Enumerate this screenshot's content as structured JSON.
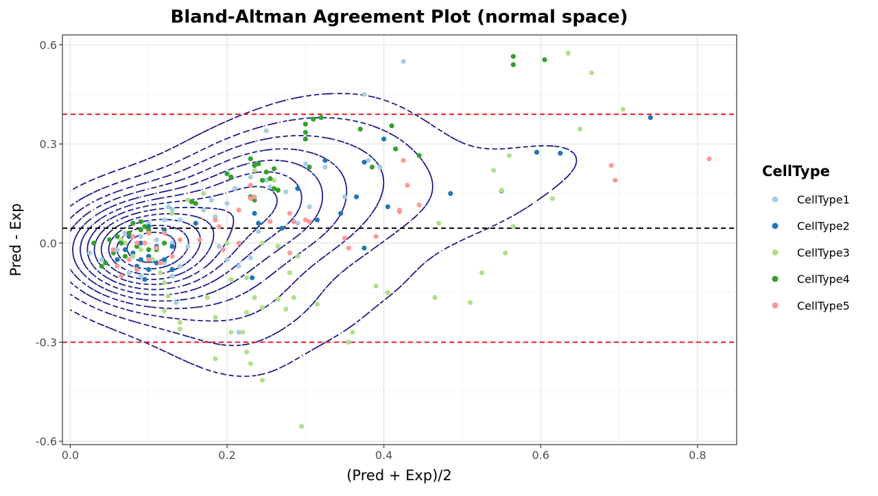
{
  "chart_data": {
    "type": "scatter",
    "title": "Bland-Altman Agreement Plot (normal space)",
    "xlabel": "(Pred + Exp)/2",
    "ylabel": "Pred - Exp",
    "xlim": [
      -0.01,
      0.85
    ],
    "ylim": [
      -0.61,
      0.63
    ],
    "x_ticks": [
      0.0,
      0.2,
      0.4,
      0.6,
      0.8
    ],
    "x_tick_labels": [
      "0.0",
      "0.2",
      "0.4",
      "0.6",
      "0.8"
    ],
    "y_ticks": [
      -0.6,
      -0.3,
      0.0,
      0.3,
      0.6
    ],
    "y_tick_labels": [
      "-0.6",
      "-0.3",
      "0.0",
      "0.3",
      "0.6"
    ],
    "grid": true,
    "legend_title": "CellType",
    "legend_position": "right",
    "reference_lines": [
      {
        "y": 0.045,
        "color": "#000000",
        "style": "dashed"
      },
      {
        "y": 0.39,
        "color": "#e41a1c",
        "style": "dashed"
      },
      {
        "y": -0.3,
        "color": "#e41a1c",
        "style": "dashed"
      }
    ],
    "contour_color": "#1a1a8c",
    "series": [
      {
        "name": "CellType1",
        "color": "#a6cee3",
        "points": [
          [
            0.425,
            0.55
          ],
          [
            0.375,
            0.45
          ],
          [
            0.25,
            0.34
          ],
          [
            0.38,
            0.25
          ],
          [
            0.3,
            0.24
          ],
          [
            0.325,
            0.23
          ],
          [
            0.395,
            0.23
          ],
          [
            0.23,
            0.2
          ],
          [
            0.25,
            0.19
          ],
          [
            0.255,
            0.17
          ],
          [
            0.21,
            0.165
          ],
          [
            0.275,
            0.155
          ],
          [
            0.305,
            0.11
          ],
          [
            0.2,
            0.12
          ],
          [
            0.185,
            0.08
          ],
          [
            0.35,
            0.14
          ],
          [
            0.125,
            0.11
          ],
          [
            0.13,
            0.1
          ],
          [
            0.17,
            0.1
          ],
          [
            0.12,
            0.07
          ],
          [
            0.18,
            0.13
          ],
          [
            0.1,
            0.06
          ],
          [
            0.14,
            0.07
          ],
          [
            0.07,
            0.03
          ],
          [
            0.09,
            0.02
          ],
          [
            0.11,
            0.01
          ],
          [
            0.13,
            0.0
          ],
          [
            0.15,
            -0.01
          ],
          [
            0.06,
            -0.02
          ],
          [
            0.08,
            -0.03
          ],
          [
            0.1,
            -0.04
          ],
          [
            0.025,
            -0.03
          ],
          [
            0.04,
            -0.05
          ],
          [
            0.12,
            -0.06
          ],
          [
            0.14,
            -0.07
          ],
          [
            0.2,
            -0.05
          ],
          [
            0.215,
            -0.07
          ],
          [
            0.23,
            -0.045
          ],
          [
            0.19,
            -0.01
          ],
          [
            0.24,
            0.035
          ],
          [
            0.29,
            0.06
          ],
          [
            0.075,
            -0.09
          ],
          [
            0.09,
            -0.1
          ],
          [
            0.13,
            -0.1
          ],
          [
            0.135,
            -0.18
          ],
          [
            0.215,
            -0.27
          ]
        ]
      },
      {
        "name": "CellType2",
        "color": "#1f78b4",
        "points": [
          [
            0.74,
            0.38
          ],
          [
            0.595,
            0.275
          ],
          [
            0.625,
            0.272
          ],
          [
            0.4,
            0.315
          ],
          [
            0.325,
            0.25
          ],
          [
            0.375,
            0.245
          ],
          [
            0.485,
            0.15
          ],
          [
            0.405,
            0.11
          ],
          [
            0.55,
            0.158
          ],
          [
            0.365,
            0.14
          ],
          [
            0.29,
            0.165
          ],
          [
            0.345,
            0.09
          ],
          [
            0.235,
            0.09
          ],
          [
            0.315,
            0.07
          ],
          [
            0.27,
            0.045
          ],
          [
            0.24,
            0.06
          ],
          [
            0.375,
            -0.015
          ],
          [
            0.16,
            0.06
          ],
          [
            0.1,
            0.05
          ],
          [
            0.12,
            0.04
          ],
          [
            0.09,
            0.0
          ],
          [
            0.11,
            -0.01
          ],
          [
            0.13,
            -0.01
          ],
          [
            0.07,
            -0.02
          ],
          [
            0.08,
            -0.03
          ],
          [
            0.09,
            -0.05
          ],
          [
            0.1,
            -0.04
          ],
          [
            0.11,
            -0.06
          ],
          [
            0.06,
            -0.05
          ],
          [
            0.085,
            -0.07
          ],
          [
            0.1,
            -0.08
          ],
          [
            0.12,
            -0.05
          ],
          [
            0.095,
            -0.11
          ],
          [
            0.13,
            -0.08
          ],
          [
            0.075,
            0.02
          ],
          [
            0.232,
            -0.105
          ]
        ]
      },
      {
        "name": "CellType3",
        "color": "#b2df8a",
        "points": [
          [
            0.635,
            0.575
          ],
          [
            0.665,
            0.515
          ],
          [
            0.705,
            0.405
          ],
          [
            0.65,
            0.345
          ],
          [
            0.54,
            0.22
          ],
          [
            0.56,
            0.265
          ],
          [
            0.615,
            0.135
          ],
          [
            0.55,
            0.16
          ],
          [
            0.47,
            0.06
          ],
          [
            0.565,
            0.05
          ],
          [
            0.555,
            -0.03
          ],
          [
            0.525,
            -0.09
          ],
          [
            0.51,
            -0.18
          ],
          [
            0.465,
            -0.165
          ],
          [
            0.405,
            -0.15
          ],
          [
            0.39,
            -0.13
          ],
          [
            0.355,
            -0.3
          ],
          [
            0.36,
            -0.27
          ],
          [
            0.315,
            -0.185
          ],
          [
            0.285,
            -0.165
          ],
          [
            0.275,
            -0.2
          ],
          [
            0.245,
            -0.195
          ],
          [
            0.235,
            -0.165
          ],
          [
            0.225,
            -0.21
          ],
          [
            0.205,
            -0.27
          ],
          [
            0.185,
            -0.225
          ],
          [
            0.175,
            -0.165
          ],
          [
            0.14,
            -0.24
          ],
          [
            0.14,
            -0.26
          ],
          [
            0.125,
            -0.16
          ],
          [
            0.12,
            -0.205
          ],
          [
            0.22,
            -0.27
          ],
          [
            0.225,
            -0.33
          ],
          [
            0.23,
            -0.365
          ],
          [
            0.185,
            -0.35
          ],
          [
            0.245,
            -0.415
          ],
          [
            0.295,
            -0.555
          ],
          [
            0.28,
            -0.09
          ],
          [
            0.265,
            -0.17
          ],
          [
            0.29,
            -0.04
          ],
          [
            0.225,
            -0.105
          ],
          [
            0.205,
            -0.11
          ],
          [
            0.245,
            0.0
          ],
          [
            0.265,
            -0.01
          ],
          [
            0.2,
            0.0
          ],
          [
            0.235,
            0.22
          ],
          [
            0.26,
            0.19
          ],
          [
            0.15,
            0.13
          ],
          [
            0.17,
            0.15
          ],
          [
            0.13,
            0.09
          ],
          [
            0.065,
            0.01
          ],
          [
            0.09,
            -0.02
          ],
          [
            0.105,
            -0.05
          ],
          [
            0.07,
            0.0
          ],
          [
            0.08,
            -0.04
          ],
          [
            0.115,
            -0.09
          ],
          [
            0.12,
            -0.12
          ]
        ]
      },
      {
        "name": "CellType4",
        "color": "#33a02c",
        "points": [
          [
            0.565,
            0.565
          ],
          [
            0.565,
            0.54
          ],
          [
            0.605,
            0.555
          ],
          [
            0.32,
            0.38
          ],
          [
            0.31,
            0.375
          ],
          [
            0.3,
            0.36
          ],
          [
            0.37,
            0.345
          ],
          [
            0.41,
            0.355
          ],
          [
            0.3,
            0.335
          ],
          [
            0.3,
            0.315
          ],
          [
            0.415,
            0.285
          ],
          [
            0.445,
            0.265
          ],
          [
            0.23,
            0.255
          ],
          [
            0.235,
            0.235
          ],
          [
            0.24,
            0.24
          ],
          [
            0.385,
            0.23
          ],
          [
            0.305,
            0.23
          ],
          [
            0.26,
            0.225
          ],
          [
            0.25,
            0.215
          ],
          [
            0.2,
            0.21
          ],
          [
            0.205,
            0.2
          ],
          [
            0.245,
            0.19
          ],
          [
            0.255,
            0.195
          ],
          [
            0.26,
            0.165
          ],
          [
            0.265,
            0.16
          ],
          [
            0.23,
            0.14
          ],
          [
            0.235,
            0.13
          ],
          [
            0.155,
            0.125
          ],
          [
            0.16,
            0.12
          ],
          [
            0.095,
            0.05
          ],
          [
            0.09,
            0.04
          ],
          [
            0.075,
            0.03
          ],
          [
            0.06,
            0.02
          ],
          [
            0.05,
            0.01
          ],
          [
            0.03,
            0.0
          ],
          [
            0.065,
            0.0
          ],
          [
            0.085,
            -0.01
          ],
          [
            0.1,
            -0.02
          ],
          [
            0.055,
            -0.03
          ],
          [
            0.07,
            -0.04
          ],
          [
            0.045,
            -0.06
          ],
          [
            0.04,
            -0.07
          ],
          [
            0.11,
            -0.02
          ],
          [
            0.12,
            0.0
          ],
          [
            0.09,
            0.065
          ],
          [
            0.08,
            0.06
          ],
          [
            0.1,
            0.04
          ]
        ]
      },
      {
        "name": "CellType5",
        "color": "#fb9a99",
        "points": [
          [
            0.815,
            0.255
          ],
          [
            0.69,
            0.235
          ],
          [
            0.695,
            0.19
          ],
          [
            0.425,
            0.25
          ],
          [
            0.43,
            0.175
          ],
          [
            0.445,
            0.115
          ],
          [
            0.42,
            0.095
          ],
          [
            0.42,
            0.1
          ],
          [
            0.39,
            0.02
          ],
          [
            0.355,
            -0.015
          ],
          [
            0.35,
            0.015
          ],
          [
            0.28,
            0.09
          ],
          [
            0.285,
            0.065
          ],
          [
            0.3,
            0.07
          ],
          [
            0.305,
            0.065
          ],
          [
            0.23,
            0.175
          ],
          [
            0.235,
            0.14
          ],
          [
            0.23,
            0.135
          ],
          [
            0.215,
            0.1
          ],
          [
            0.255,
            0.065
          ],
          [
            0.185,
            0.07
          ],
          [
            0.19,
            0.05
          ],
          [
            0.165,
            0.01
          ],
          [
            0.195,
            -0.02
          ],
          [
            0.215,
            0.0
          ],
          [
            0.28,
            -0.03
          ],
          [
            0.14,
            0.01
          ],
          [
            0.12,
            0.03
          ],
          [
            0.1,
            0.03
          ],
          [
            0.08,
            0.02
          ],
          [
            0.085,
            0.0
          ],
          [
            0.11,
            -0.015
          ],
          [
            0.13,
            -0.04
          ],
          [
            0.075,
            -0.05
          ],
          [
            0.06,
            -0.07
          ],
          [
            0.065,
            -0.1
          ],
          [
            0.085,
            -0.08
          ],
          [
            0.1,
            -0.05
          ],
          [
            0.115,
            -0.06
          ],
          [
            0.095,
            0.0
          ],
          [
            0.055,
            -0.02
          ]
        ]
      }
    ]
  }
}
